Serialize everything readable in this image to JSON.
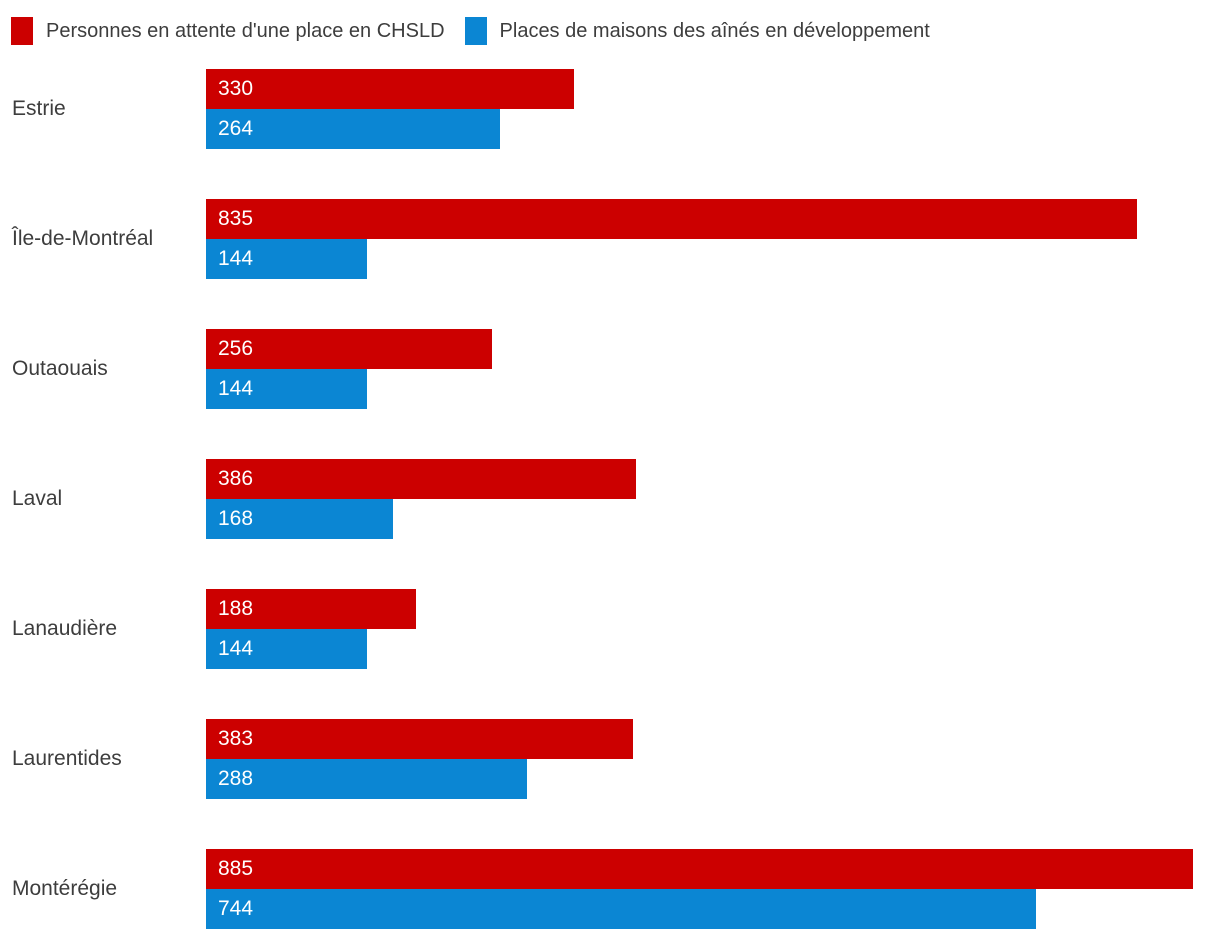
{
  "legend": {
    "items": [
      {
        "key": "chsld",
        "label": "Personnes en attente d'une place en CHSLD",
        "color": "#cc0000"
      },
      {
        "key": "maisons-aines",
        "label": "Places de maisons des aînés en développement",
        "color": "#0b86d3"
      }
    ]
  },
  "chart_data": {
    "type": "bar",
    "orientation": "horizontal",
    "categories": [
      "Estrie",
      "Île-de-Montréal",
      "Outaouais",
      "Laval",
      "Lanaudière",
      "Laurentides",
      "Montérégie"
    ],
    "series": [
      {
        "name": "Personnes en attente d'une place en CHSLD",
        "color": "#cc0000",
        "values": [
          330,
          835,
          256,
          386,
          188,
          383,
          885
        ]
      },
      {
        "name": "Places de maisons des aînés en développement",
        "color": "#0b86d3",
        "values": [
          264,
          144,
          144,
          168,
          144,
          288,
          744
        ]
      }
    ],
    "xlim": [
      0,
      885
    ],
    "value_labels": "inside-start",
    "grid": false,
    "legend_position": "top-left",
    "title": "",
    "xlabel": "",
    "ylabel": ""
  },
  "colors": {
    "series_red": "#cc0000",
    "series_blue": "#0b86d3",
    "category_text": "#3d3d3d",
    "value_text": "#ffffff",
    "background": "#ffffff"
  }
}
